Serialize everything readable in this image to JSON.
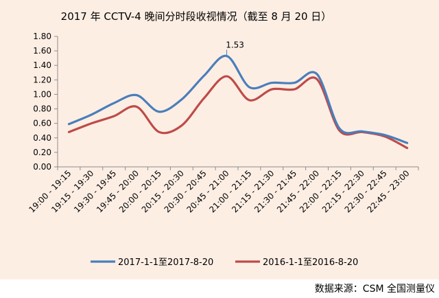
{
  "chart_data": {
    "type": "line",
    "title": "2017 年 CCTV-4 晚间分时段收视情况（截至 8 月 20 日）",
    "xlabel": "",
    "ylabel": "",
    "ylim": [
      0,
      1.8
    ],
    "yticks": [
      "0.00",
      "0.20",
      "0.40",
      "0.60",
      "0.80",
      "1.00",
      "1.20",
      "1.40",
      "1.60",
      "1.80"
    ],
    "categories": [
      "19:00 - 19:15",
      "19:15 - 19:30",
      "19:30 - 19:45",
      "19:45 - 20:00",
      "20:00 - 20:15",
      "20:15 - 20:30",
      "20:30 - 20:45",
      "20:45 - 21:00",
      "21:00 - 21:15",
      "21:15 - 21:30",
      "21:30 - 21:45",
      "21:45 - 22:00",
      "22:00 - 22:15",
      "22:15 - 22:30",
      "22:30 - 22:45",
      "22:45 - 23:00"
    ],
    "series": [
      {
        "name": "2017-1-1至2017-8-20",
        "color": "#4a7ebb",
        "values": [
          0.59,
          0.72,
          0.88,
          0.99,
          0.76,
          0.93,
          1.26,
          1.53,
          1.1,
          1.16,
          1.16,
          1.28,
          0.53,
          0.49,
          0.44,
          0.33
        ]
      },
      {
        "name": "2016-1-1至2016-8-20",
        "color": "#be4b48",
        "values": [
          0.48,
          0.6,
          0.7,
          0.83,
          0.48,
          0.57,
          0.95,
          1.25,
          0.92,
          1.07,
          1.07,
          1.21,
          0.5,
          0.48,
          0.42,
          0.26
        ]
      }
    ],
    "annotations": [
      {
        "series": 0,
        "index": 7,
        "text": "1.53"
      }
    ],
    "grid": false,
    "legend_position": "bottom"
  },
  "source_note": "数据来源：CSM 全国测量仪"
}
